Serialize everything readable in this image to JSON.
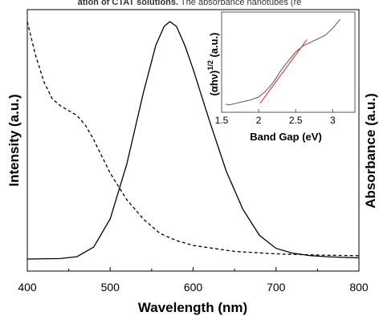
{
  "caption": {
    "prefix": "ation of CTAT solutions.",
    "rest": " The absorbance nanotubes (re"
  },
  "chart_data": [
    {
      "type": "line",
      "xlabel": "Wavelength (nm)",
      "ylabel_left": "Intensity (a.u.)",
      "ylabel_right": "Absorbance (a.u.)",
      "xlim": [
        400,
        800
      ],
      "xticks": [
        "400",
        "500",
        "600",
        "700",
        "800"
      ],
      "ylim": [
        0,
        1
      ],
      "grid": false,
      "series": [
        {
          "style": "solid",
          "x": [
            400,
            440,
            460,
            480,
            500,
            520,
            540,
            555,
            565,
            572,
            580,
            590,
            600,
            620,
            640,
            660,
            680,
            700,
            720,
            740,
            760,
            780,
            800
          ],
          "y": [
            0.0,
            0.002,
            0.01,
            0.05,
            0.17,
            0.4,
            0.7,
            0.9,
            0.98,
            1.0,
            0.98,
            0.9,
            0.8,
            0.58,
            0.37,
            0.21,
            0.1,
            0.045,
            0.025,
            0.015,
            0.01,
            0.007,
            0.005
          ]
        },
        {
          "style": "dashed",
          "x": [
            400,
            410,
            420,
            430,
            440,
            450,
            460,
            470,
            480,
            490,
            500,
            520,
            540,
            560,
            580,
            600,
            620,
            650,
            700,
            750,
            800
          ],
          "y": [
            1.0,
            0.86,
            0.75,
            0.68,
            0.65,
            0.63,
            0.61,
            0.57,
            0.51,
            0.44,
            0.37,
            0.26,
            0.18,
            0.12,
            0.09,
            0.07,
            0.06,
            0.045,
            0.035,
            0.03,
            0.027
          ]
        }
      ]
    },
    {
      "type": "line",
      "xlabel": "Band Gap (eV)",
      "ylabel": "(αhν)^1/2 (a.u.)",
      "ylabel_main": "(αhν)",
      "ylabel_sup": "1/2",
      "ylabel_unit": " (a.u.)",
      "xlim": [
        1.5,
        3.3
      ],
      "xticks": [
        "1.5",
        "2",
        "2.5",
        "3"
      ],
      "series": [
        {
          "style": "solid",
          "color": "#555555",
          "x": [
            1.55,
            1.6,
            1.7,
            1.8,
            1.9,
            2.0,
            2.1,
            2.2,
            2.3,
            2.4,
            2.5,
            2.6,
            2.7,
            2.8,
            2.9,
            3.0,
            3.1
          ],
          "y": [
            0.02,
            0.01,
            0.03,
            0.05,
            0.07,
            0.1,
            0.17,
            0.27,
            0.4,
            0.51,
            0.61,
            0.68,
            0.72,
            0.76,
            0.8,
            0.88,
            0.98
          ]
        },
        {
          "style": "solid",
          "color": "#e8382e",
          "x": [
            2.02,
            2.65
          ],
          "y": [
            0.03,
            0.75
          ]
        }
      ]
    }
  ]
}
